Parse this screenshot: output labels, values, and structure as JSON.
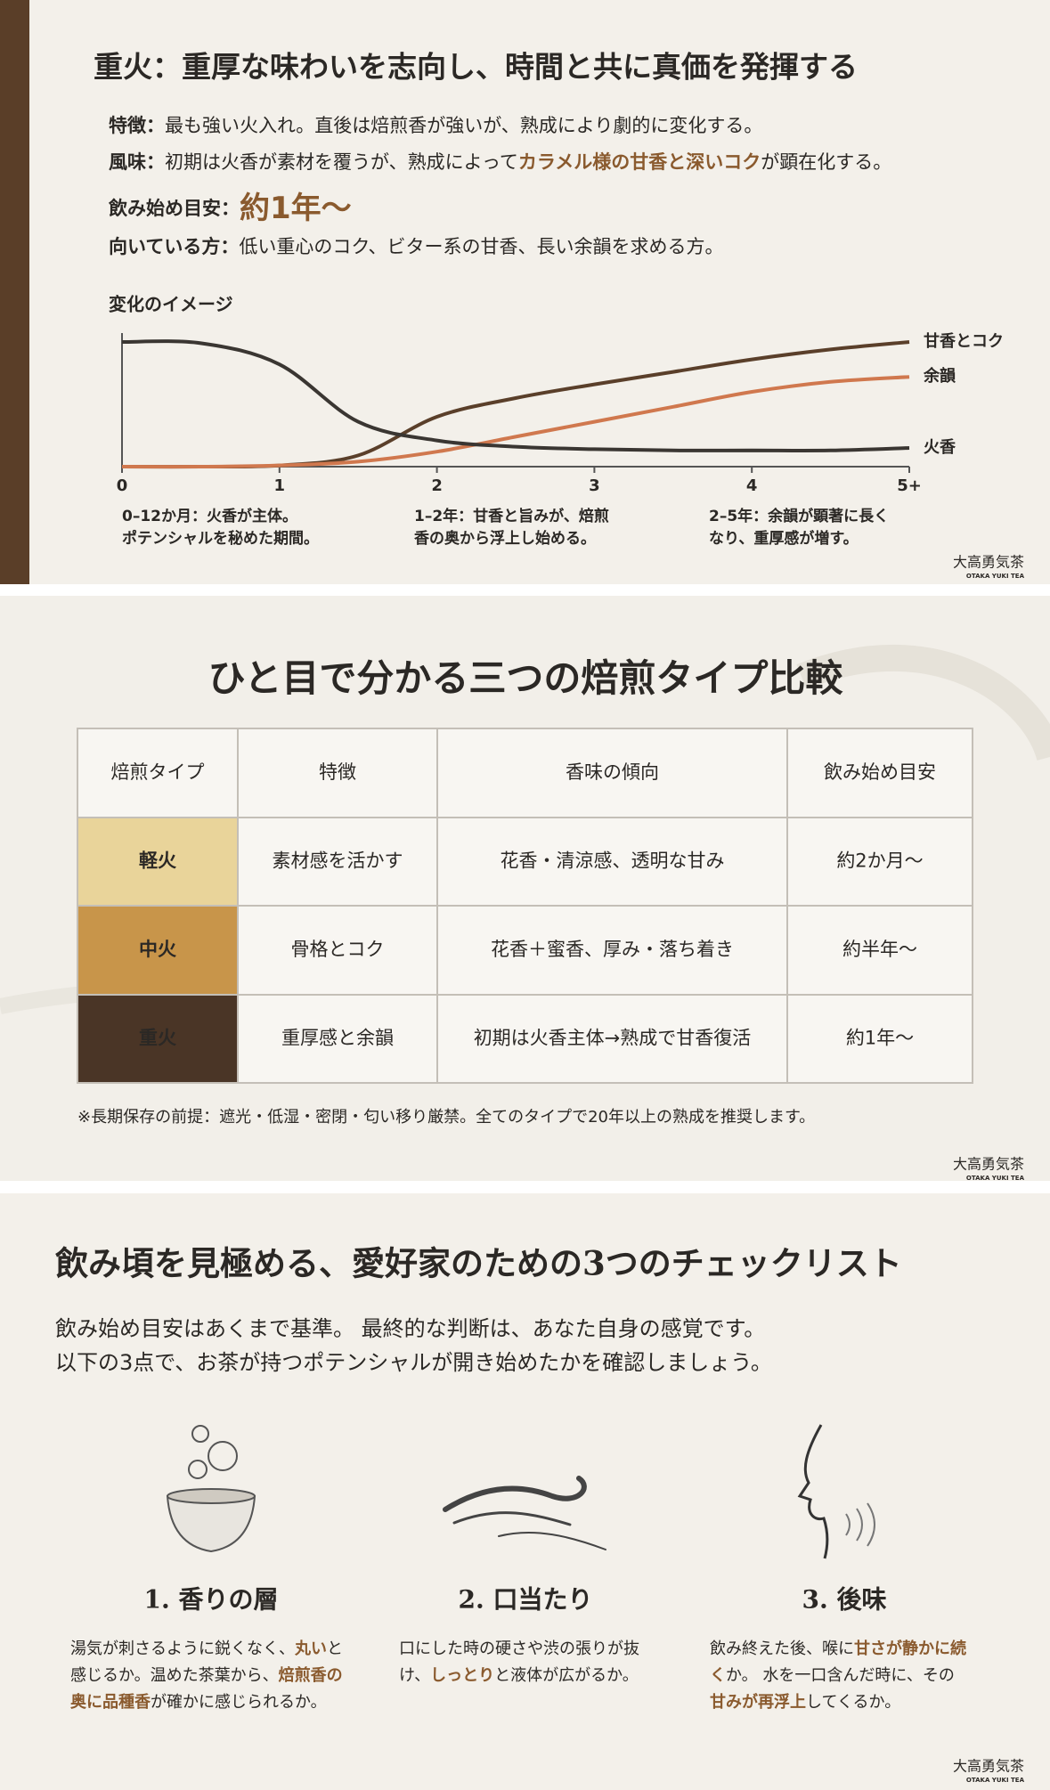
{
  "section1": {
    "title": "重火：重厚な味わいを志向し、時間と共に真価を発揮する",
    "features": [
      {
        "label": "特徴：",
        "segments": [
          {
            "text": "最も強い火入れ。直後は焙煎香が強いが、熟成により劇的に変化する。"
          }
        ]
      },
      {
        "label": "風味：",
        "segments": [
          {
            "text": "初期は火香が素材を覆うが、熟成によって"
          },
          {
            "text": "カラメル様の甘香と深いコク",
            "em": true
          },
          {
            "text": "が顕在化する。"
          }
        ]
      },
      {
        "label": "飲み始め目安：",
        "big": "約1年〜"
      },
      {
        "label": "向いている方：",
        "segments": [
          {
            "text": "低い重心のコク、ビター系の甘香、長い余韻を求める方。"
          }
        ]
      }
    ]
  },
  "chart_data": {
    "type": "line",
    "title": "変化のイメージ",
    "x": [
      0,
      0.5,
      1,
      1.5,
      2,
      2.5,
      3,
      3.5,
      4,
      4.5,
      5
    ],
    "xlim": [
      0,
      5
    ],
    "ylim": [
      0,
      100
    ],
    "xticks": [
      0,
      1,
      2,
      3,
      4,
      {
        "value": 5,
        "label": "5+"
      }
    ],
    "series": [
      {
        "name": "甘香とコク",
        "color": "#5a3f2a",
        "values": [
          0,
          0,
          1,
          9,
          40,
          55,
          66,
          76,
          86,
          94,
          100
        ]
      },
      {
        "name": "余韻",
        "color": "#d0784e",
        "values": [
          0,
          0,
          1,
          4,
          12,
          24,
          36,
          48,
          60,
          68,
          72
        ]
      },
      {
        "name": "火香",
        "color": "#3a3632",
        "values": [
          100,
          99,
          82,
          36,
          21,
          16,
          14,
          13,
          13,
          13,
          15
        ]
      }
    ],
    "annotations": [
      [
        "0–12か月：火香が主体。",
        "ポテンシャルを秘めた期間。"
      ],
      [
        "1–2年：甘香と旨みが、焙煎",
        "香の奥から浮上し始める。"
      ],
      [
        "2–5年：余韻が顕著に長く",
        "なり、重厚感が増す。"
      ]
    ]
  },
  "comparison": {
    "title": "ひと目で分かる三つの焙煎タイプ比較",
    "header": [
      "焙煎タイプ",
      "特徴",
      "香味の傾向",
      "飲み始め目安"
    ],
    "rows": [
      {
        "color": "#e9d49a",
        "cells": [
          "軽火",
          "素材感を活かす",
          "花香・清涼感、透明な甘み",
          "約2か月〜"
        ]
      },
      {
        "color": "#c8954a",
        "cells": [
          "中火",
          "骨格とコク",
          "花香＋蜜香、厚み・落ち着き",
          "約半年〜"
        ]
      },
      {
        "color": "#4a3526",
        "cells": [
          "重火",
          "重厚感と余韻",
          "初期は火香主体→熟成で甘香復活",
          "約1年〜"
        ]
      }
    ],
    "note": "※長期保存の前提：遮光・低湿・密閉・匂い移り厳禁。全てのタイプで20年以上の熟成を推奨します。"
  },
  "checklist": {
    "title": "飲み頃を見極める、愛好家のための3つのチェックリスト",
    "intro": [
      "飲み始め目安はあくまで基準。 最終的な判断は、あなた自身の感覚です。",
      "以下の3点で、お茶が持つポテンシャルが開き始めたかを確認しましょう。"
    ],
    "items": [
      {
        "title": "1. 香りの層",
        "lines": [
          [
            {
              "text": "湯気が刺さるように鋭くなく、"
            },
            {
              "text": "丸い",
              "em": true
            },
            {
              "text": "と"
            }
          ],
          [
            {
              "text": "感じるか。温めた茶葉から、"
            },
            {
              "text": "焙煎香の",
              "em": true
            }
          ],
          [
            {
              "text": "奥に品種香",
              "em": true
            },
            {
              "text": "が確かに感じられるか。"
            }
          ]
        ]
      },
      {
        "title": "2. 口当たり",
        "lines": [
          [
            {
              "text": "口にした時の硬さや渋の張りが抜"
            }
          ],
          [
            {
              "text": "け、"
            },
            {
              "text": "しっとり",
              "em": true
            },
            {
              "text": "と液体が広がるか。"
            }
          ]
        ]
      },
      {
        "title": "3. 後味",
        "lines": [
          [
            {
              "text": "飲み終えた後、喉に"
            },
            {
              "text": "甘さが静かに続",
              "em": true
            }
          ],
          [
            {
              "text": "く",
              "em": true
            },
            {
              "text": "か。 水を一口含んだ時に、その"
            }
          ],
          [
            {
              "text": "甘みが再浮上",
              "em": true
            },
            {
              "text": "してくるか。"
            }
          ]
        ]
      }
    ]
  },
  "brand": {
    "name": "大高勇気茶",
    "sub": "OTAKA YUKI TEA"
  }
}
